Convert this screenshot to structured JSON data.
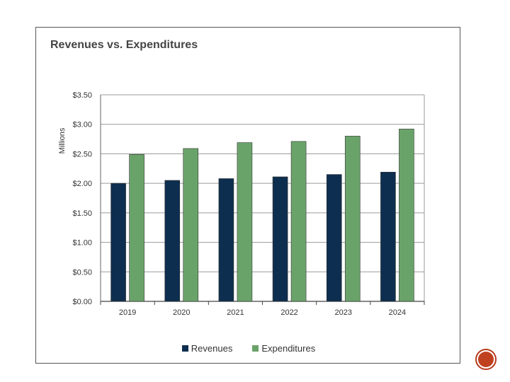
{
  "chart_data": {
    "type": "bar",
    "title": "Revenues vs. Expenditures",
    "xlabel": "",
    "ylabel": "Millions",
    "ylim": [
      0,
      3.5
    ],
    "yticks": [
      0,
      0.5,
      1.0,
      1.5,
      2.0,
      2.5,
      3.0,
      3.5
    ],
    "ytick_labels": [
      "$0.00",
      "$0.50",
      "$1.00",
      "$1.50",
      "$2.00",
      "$2.50",
      "$3.00",
      "$3.50"
    ],
    "grid": true,
    "legend_position": "bottom",
    "categories": [
      "2019",
      "2020",
      "2021",
      "2022",
      "2023",
      "2024"
    ],
    "series": [
      {
        "name": "Revenues",
        "color": "#0d2e4f",
        "values": [
          2.0,
          2.05,
          2.08,
          2.11,
          2.15,
          2.19
        ]
      },
      {
        "name": "Expenditures",
        "color": "#6aa36a",
        "values": [
          2.49,
          2.59,
          2.69,
          2.71,
          2.8,
          2.92
        ]
      }
    ]
  },
  "colors": {
    "frame_border": "#555555",
    "gridline": "#9a9a9a",
    "nav_accent": "#c0411f"
  }
}
